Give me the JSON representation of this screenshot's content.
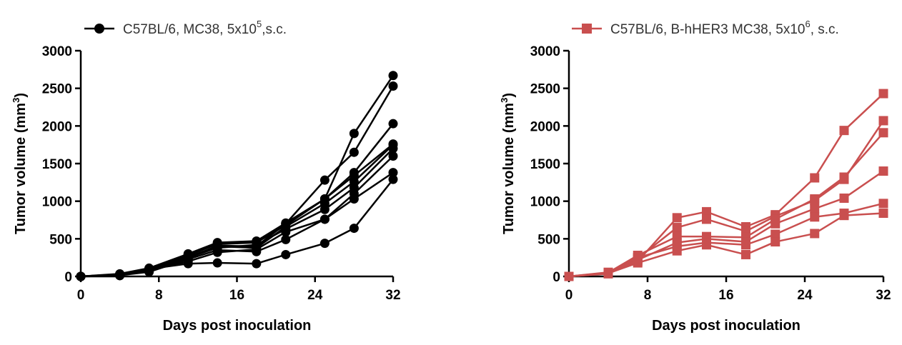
{
  "chart_data": [
    {
      "type": "line",
      "legend": {
        "label_main": "C57BL/6, MC38, 5x10",
        "label_sup": "5",
        "label_tail": ",s.c.",
        "marker": "circle",
        "placement": "top"
      },
      "color": "#000000",
      "xlabel": "Days post inoculation",
      "ylabel_main": "Tumor volume (mm",
      "ylabel_sup": "3",
      "ylabel_tail": ")",
      "xlim": [
        0,
        32
      ],
      "ylim": [
        0,
        3000
      ],
      "xticks": [
        "0",
        "8",
        "16",
        "24",
        "32"
      ],
      "yticks": [
        "0",
        "500",
        "1000",
        "1500",
        "2000",
        "2500",
        "3000"
      ],
      "x": [
        0,
        4,
        7,
        11,
        14,
        18,
        21,
        25,
        28,
        32
      ],
      "series": [
        {
          "values": [
            0,
            10,
            100,
            170,
            180,
            170,
            290,
            440,
            640,
            1290
          ]
        },
        {
          "values": [
            0,
            15,
            60,
            230,
            350,
            330,
            490,
            760,
            1030,
            1380
          ]
        },
        {
          "values": [
            0,
            20,
            80,
            200,
            320,
            360,
            590,
            760,
            1100,
            1600
          ]
        },
        {
          "values": [
            0,
            25,
            90,
            250,
            380,
            420,
            630,
            890,
            1180,
            1700
          ]
        },
        {
          "values": [
            0,
            18,
            85,
            260,
            400,
            380,
            660,
            970,
            1260,
            1750
          ]
        },
        {
          "values": [
            0,
            30,
            95,
            280,
            430,
            450,
            680,
            1030,
            1340,
            1760
          ]
        },
        {
          "values": [
            0,
            22,
            70,
            240,
            410,
            400,
            700,
            1030,
            1380,
            2030
          ]
        },
        {
          "values": [
            0,
            28,
            105,
            290,
            440,
            460,
            700,
            1280,
            1650,
            2530
          ]
        },
        {
          "values": [
            0,
            35,
            110,
            300,
            450,
            470,
            710,
            1030,
            1900,
            2670
          ]
        }
      ]
    },
    {
      "type": "line",
      "legend": {
        "label_main": "C57BL/6, B-hHER3 MC38, 5x10",
        "label_sup": "6",
        "label_tail": ", s.c.",
        "marker": "square",
        "placement": "top"
      },
      "color": "#c94f4f",
      "xlabel": "Days post inoculation",
      "ylabel_main": "Tumor volume (mm",
      "ylabel_sup": "3",
      "ylabel_tail": ")",
      "xlim": [
        0,
        32
      ],
      "ylim": [
        0,
        3000
      ],
      "xticks": [
        "0",
        "8",
        "16",
        "24",
        "32"
      ],
      "yticks": [
        "0",
        "500",
        "1000",
        "1500",
        "2000",
        "2500",
        "3000"
      ],
      "x": [
        0,
        4,
        7,
        11,
        14,
        18,
        21,
        25,
        28,
        32
      ],
      "series": [
        {
          "values": [
            0,
            40,
            200,
            780,
            860,
            660,
            820,
            1310,
            1940,
            2430
          ]
        },
        {
          "values": [
            0,
            45,
            240,
            650,
            760,
            600,
            800,
            1010,
            1290,
            2070
          ]
        },
        {
          "values": [
            0,
            50,
            280,
            530,
            530,
            520,
            760,
            1030,
            1320,
            1910
          ]
        },
        {
          "values": [
            0,
            35,
            220,
            450,
            500,
            460,
            700,
            900,
            1040,
            1400
          ]
        },
        {
          "values": [
            0,
            55,
            250,
            400,
            450,
            420,
            560,
            790,
            840,
            970
          ]
        },
        {
          "values": [
            0,
            42,
            180,
            340,
            420,
            290,
            460,
            570,
            810,
            840
          ]
        }
      ]
    }
  ]
}
